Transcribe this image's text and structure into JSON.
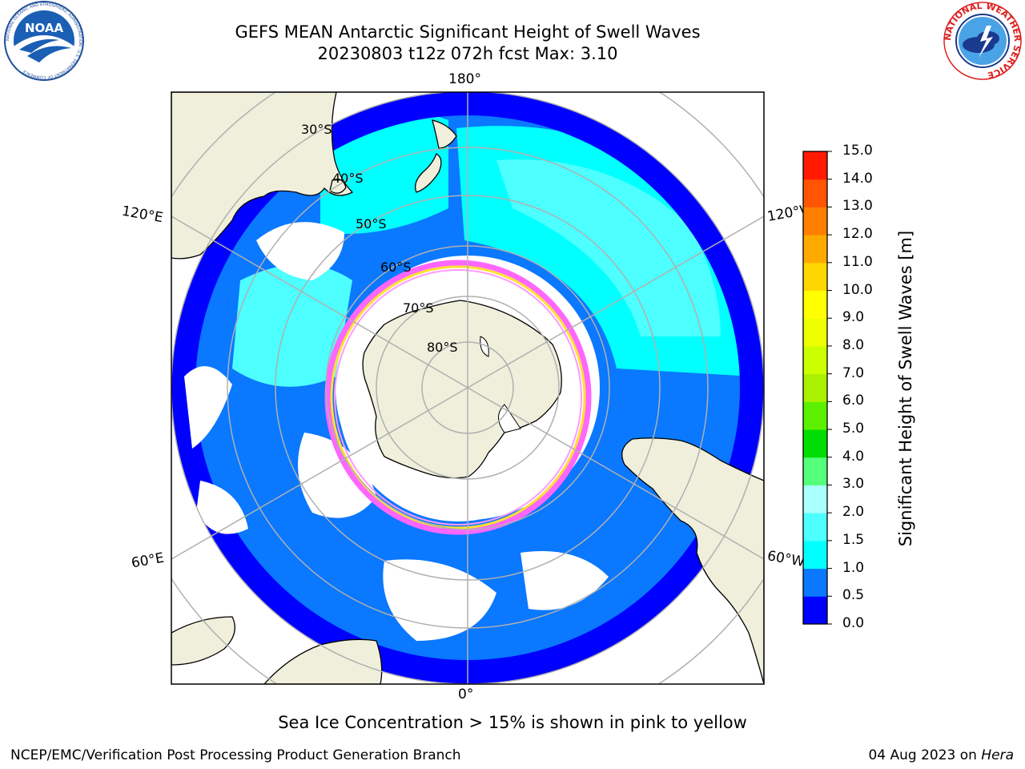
{
  "title": {
    "line1": "GEFS MEAN Antarctic Significant Height of Swell Waves",
    "line2": "20230803 t12z 072h fcst   Max: 3.10"
  },
  "logos": {
    "left": {
      "icon": "noaa-logo-icon",
      "text": "NOAA",
      "ring": "NATIONAL OCEANIC AND ATMOSPHERIC ADMINISTRATION · U.S. DEPARTMENT OF COMMERCE"
    },
    "right": {
      "icon": "national-weather-service-logo-icon",
      "ring": "NATIONAL WEATHER SERVICE"
    }
  },
  "map": {
    "projection": "south-polar-stereographic",
    "longitude_labels": [
      "180°",
      "120°E",
      "120°W",
      "60°E",
      "60°W",
      "0°"
    ],
    "latitude_labels": [
      "30°S",
      "40°S",
      "50°S",
      "60°S",
      "70°S",
      "80°S"
    ],
    "colors": {
      "land": "#efefdc",
      "coast": "#000000",
      "grid": "#b0b0b0",
      "no_swell": "#ffffff",
      "ice_pink": "#ff66ff",
      "ice_yellow": "#ffe033"
    }
  },
  "colorbar": {
    "label": "Significant Height of Swell Waves [m]",
    "ticks": [
      "0.0",
      "0.5",
      "1.0",
      "1.5",
      "2.0",
      "3.0",
      "4.0",
      "5.0",
      "6.0",
      "7.0",
      "8.0",
      "9.0",
      "10.0",
      "11.0",
      "12.0",
      "13.0",
      "14.0",
      "15.0"
    ],
    "colors": [
      "#0000ff",
      "#0a78ff",
      "#00ffff",
      "#4dffff",
      "#aaffff",
      "#55ff7a",
      "#00dd00",
      "#5cf000",
      "#aaf000",
      "#ccff00",
      "#eeff00",
      "#ffff00",
      "#ffd700",
      "#ffaa00",
      "#ff8000",
      "#ff5500",
      "#ff1a00"
    ]
  },
  "ice_note": "Sea Ice Concentration > 15% is shown in pink to yellow",
  "footer": {
    "left": "NCEP/EMC/Verification Post Processing Product Generation Branch",
    "date": "04 Aug 2023 on ",
    "machine": "Hera"
  }
}
